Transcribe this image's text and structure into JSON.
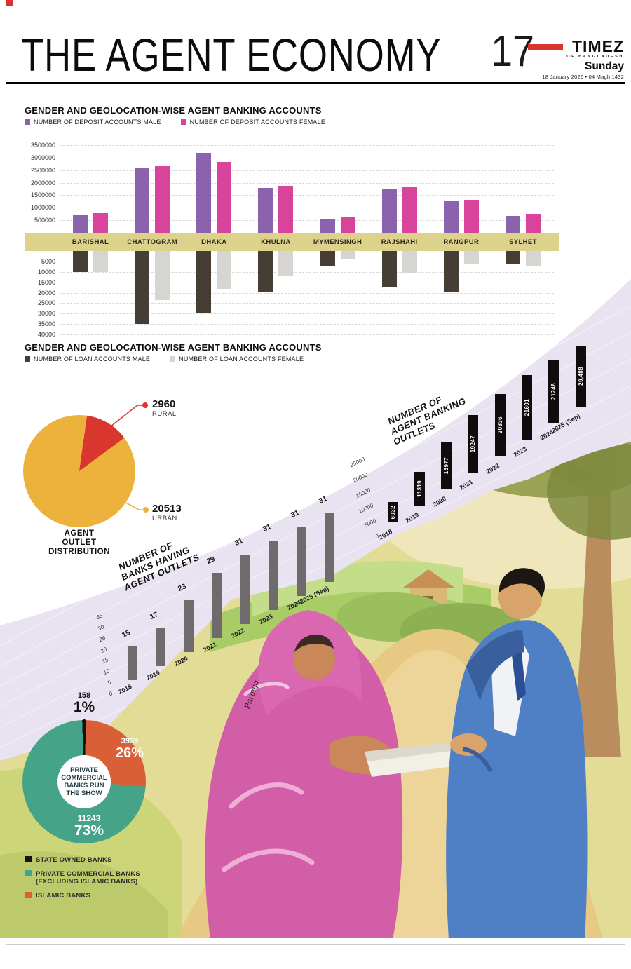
{
  "header": {
    "title": "THE AGENT ECONOMY",
    "page_number": "17",
    "masthead": "TIMEZ",
    "masthead_sub": "OF BANGLADESH",
    "day": "Sunday",
    "date_line": "18 January 2026 • 04 Magh 1432"
  },
  "signature": "Paranja",
  "colors": {
    "accent_red": "#d9352c",
    "deposit_male": "#8a63ac",
    "deposit_female": "#d8439b",
    "loan_male": "#463e35",
    "loan_female": "#d7d5d2",
    "division_band": "#ddd28c",
    "diagonal_band": "#e9e2f1",
    "pie_rural": "#d8362f",
    "pie_urban": "#edb23c",
    "state_owned": "#131313",
    "private_commercial": "#45a388",
    "islamic": "#d95f36"
  },
  "chart_data": [
    {
      "id": "deposit-accounts",
      "type": "bar",
      "title": "GENDER AND GEOLOCATION-WISE AGENT BANKING ACCOUNTS",
      "legend": [
        {
          "label": "NUMBER OF DEPOSIT ACCOUNTS  MALE",
          "color": "#8a63ac"
        },
        {
          "label": "NUMBER OF DEPOSIT ACCOUNTS  FEMALE",
          "color": "#d8439b"
        }
      ],
      "categories": [
        "BARISHAL",
        "CHATTOGRAM",
        "DHAKA",
        "KHULNA",
        "MYMENSINGH",
        "RAJSHAHI",
        "RANGPUR",
        "SYLHET"
      ],
      "series": [
        {
          "name": "MALE",
          "color": "#8a63ac",
          "values": [
            700000,
            2600000,
            3200000,
            1780000,
            560000,
            1740000,
            1270000,
            660000
          ]
        },
        {
          "name": "FEMALE",
          "color": "#d8439b",
          "values": [
            790000,
            2650000,
            2840000,
            1880000,
            640000,
            1820000,
            1330000,
            760000
          ]
        }
      ],
      "ylim": [
        0,
        3500000
      ],
      "yticks": [
        500000,
        1000000,
        1500000,
        2000000,
        2500000,
        3000000,
        3500000
      ],
      "grid": "dashed"
    },
    {
      "id": "loan-accounts",
      "type": "bar",
      "direction": "down",
      "title": "GENDER AND GEOLOCATION-WISE AGENT BANKING ACCOUNTS",
      "legend": [
        {
          "label": "NUMBER OF LOAN ACCOUNTS MALE",
          "color": "#463e35"
        },
        {
          "label": "NUMBER OF LOAN ACCOUNTS FEMALE",
          "color": "#d7d5d2"
        }
      ],
      "categories": [
        "BARISHAL",
        "CHATTOGRAM",
        "DHAKA",
        "KHULNA",
        "MYMENSINGH",
        "RAJSHAHI",
        "RANGPUR",
        "SYLHET"
      ],
      "series": [
        {
          "name": "MALE",
          "color": "#463e35",
          "values": [
            10000,
            35000,
            30000,
            19500,
            7000,
            17000,
            19500,
            6500
          ]
        },
        {
          "name": "FEMALE",
          "color": "#d7d5d2",
          "values": [
            10000,
            23500,
            18000,
            12000,
            4000,
            10500,
            6500,
            7500
          ]
        }
      ],
      "ylim": [
        0,
        40000
      ],
      "yticks": [
        5000,
        10000,
        15000,
        20000,
        25000,
        30000,
        35000,
        40000
      ],
      "grid": "dashed"
    },
    {
      "id": "agent-outlet-distribution",
      "type": "pie",
      "title": "AGENT OUTLET DISTRIBUTION",
      "title_lines": [
        "AGENT",
        "OUTLET",
        "DISTRIBUTION"
      ],
      "slices": [
        {
          "label": "RURAL",
          "value": 2960,
          "color": "#d8362f"
        },
        {
          "label": "URBAN",
          "value": 20513,
          "color": "#edb23c"
        }
      ]
    },
    {
      "id": "banks-having-agent-outlets",
      "type": "bar",
      "rotated": true,
      "title": "NUMBER OF BANKS HAVING AGENT OUTLETS",
      "title_lines": [
        "NUMBER OF",
        "BANKS HAVING",
        "AGENT OUTLETS"
      ],
      "categories": [
        "2018",
        "2019",
        "2020",
        "2021",
        "2022",
        "2023",
        "2024",
        "2025 (Sep)"
      ],
      "values": [
        15,
        17,
        23,
        29,
        31,
        31,
        31,
        31
      ],
      "bar_color": "#6f6a6c",
      "ylim": [
        0,
        35
      ],
      "yticks": [
        0,
        5,
        10,
        15,
        20,
        25,
        30,
        35
      ]
    },
    {
      "id": "agent-banking-outlets",
      "type": "bar",
      "rotated": true,
      "title": "NUMBER OF AGENT BANKING OUTLETS",
      "title_lines": [
        "NUMBER OF",
        "AGENT BANKING",
        "OUTLETS"
      ],
      "categories": [
        "2018",
        "2019",
        "2020",
        "2021",
        "2022",
        "2023",
        "2024",
        "2025 (Sep)"
      ],
      "values": [
        6932,
        11319,
        15977,
        19247,
        20836,
        21601,
        21248,
        20488
      ],
      "value_labels": [
        "6932",
        "11319",
        "15977",
        "19247",
        "20836",
        "21601",
        "21248",
        "20,488"
      ],
      "bar_color": "#0e0c0d",
      "ylim": [
        0,
        25000
      ],
      "yticks": [
        0,
        5000,
        10000,
        15000,
        20000,
        25000
      ]
    },
    {
      "id": "bank-ownership-share",
      "type": "pie",
      "title": "PRIVATE COMMERCIAL BANKS RUN THE SHOW",
      "center_lines": [
        "PRIVATE",
        "COMMERCIAL",
        "BANKS RUN",
        "THE SHOW"
      ],
      "slices": [
        {
          "label": "STATE OWNED BANKS",
          "value": 158,
          "pct": "1%",
          "color": "#131313"
        },
        {
          "label": "ISLAMIC BANKS",
          "value": 3939,
          "pct": "26%",
          "color": "#d95f36"
        },
        {
          "label": "PRIVATE COMMERCIAL BANKS (EXCLUDING ISLAMIC BANKS)",
          "value": 11243,
          "pct": "73%",
          "color": "#45a388"
        }
      ],
      "legend": [
        {
          "label": "STATE OWNED BANKS",
          "label2": "",
          "color": "#131313"
        },
        {
          "label": "PRIVATE COMMERCIAL BANKS",
          "label2": "(EXCLUDING ISLAMIC BANKS)",
          "color": "#45a388"
        },
        {
          "label": "ISLAMIC BANKS",
          "label2": "",
          "color": "#d95f36"
        }
      ]
    }
  ]
}
